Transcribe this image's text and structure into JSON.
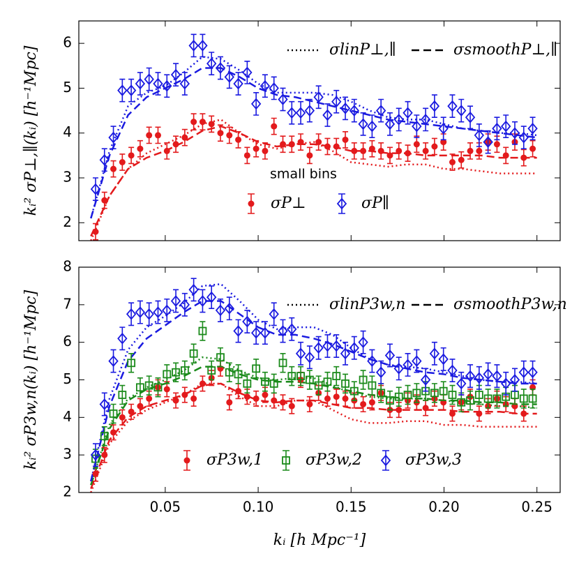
{
  "chart_data": [
    {
      "type": "scatter",
      "ylabel": "kᵢ² σP⊥,∥(kᵢ)  [h⁻¹Mpc]",
      "annotation": "small bins",
      "xlim": [
        0.0035,
        0.2625
      ],
      "ylim": [
        1.6,
        6.5
      ],
      "yticks": [
        2,
        3,
        4,
        5,
        6
      ],
      "x": [
        0.0125,
        0.0173,
        0.0221,
        0.0269,
        0.0317,
        0.0365,
        0.0413,
        0.0461,
        0.0509,
        0.0557,
        0.0605,
        0.0653,
        0.0701,
        0.0749,
        0.0797,
        0.0845,
        0.0893,
        0.0941,
        0.0989,
        0.1037,
        0.1085,
        0.1133,
        0.1181,
        0.1229,
        0.1277,
        0.1325,
        0.1373,
        0.1421,
        0.1469,
        0.1517,
        0.1565,
        0.1613,
        0.1661,
        0.1709,
        0.1757,
        0.1805,
        0.1853,
        0.1901,
        0.1949,
        0.1997,
        0.2045,
        0.2093,
        0.2141,
        0.2189,
        0.2237,
        0.2285,
        0.2333,
        0.2381,
        0.2429,
        0.2477
      ],
      "series": [
        {
          "name": "σP⊥",
          "color": "#e31a1c",
          "marker": "circle",
          "error": 0.18,
          "values": [
            1.8,
            2.5,
            3.2,
            3.35,
            3.5,
            3.65,
            3.95,
            3.95,
            3.6,
            3.75,
            3.9,
            4.25,
            4.25,
            4.2,
            4.0,
            3.95,
            3.85,
            3.5,
            3.65,
            3.6,
            4.15,
            3.75,
            3.75,
            3.8,
            3.5,
            3.8,
            3.7,
            3.7,
            3.85,
            3.6,
            3.6,
            3.65,
            3.6,
            3.5,
            3.6,
            3.55,
            3.75,
            3.6,
            3.7,
            3.8,
            3.35,
            3.4,
            3.6,
            3.6,
            3.8,
            3.75,
            3.5,
            3.8,
            3.45,
            3.65
          ]
        },
        {
          "name": "σP∥",
          "color": "#1a1ae0",
          "marker": "diamond",
          "error": 0.25,
          "values": [
            2.75,
            3.4,
            3.9,
            4.95,
            4.95,
            5.1,
            5.2,
            5.1,
            5.05,
            5.3,
            5.1,
            5.95,
            5.95,
            5.55,
            5.45,
            5.25,
            5.1,
            5.35,
            4.65,
            5.05,
            5.0,
            4.75,
            4.45,
            4.45,
            4.5,
            4.8,
            4.4,
            4.7,
            4.55,
            4.5,
            4.2,
            4.15,
            4.5,
            4.2,
            4.3,
            4.45,
            4.15,
            4.3,
            4.6,
            4.1,
            4.6,
            4.5,
            4.35,
            3.95,
            3.8,
            4.1,
            4.15,
            4.0,
            3.9,
            4.1
          ]
        }
      ],
      "legend_lines": [
        {
          "name": "σlinP⊥,∥",
          "linestyle": "dotted"
        },
        {
          "name": "σsmoothP⊥,∥",
          "linestyle": "dashed"
        }
      ],
      "curve_x": [
        0.01,
        0.02,
        0.03,
        0.04,
        0.05,
        0.06,
        0.07,
        0.08,
        0.09,
        0.1,
        0.11,
        0.12,
        0.13,
        0.14,
        0.15,
        0.16,
        0.17,
        0.18,
        0.19,
        0.2,
        0.21,
        0.22,
        0.23,
        0.24,
        0.25
      ],
      "curves": [
        {
          "color": "#e31a1c",
          "linestyle": "dotted",
          "values": [
            1.6,
            2.6,
            3.2,
            3.55,
            3.75,
            3.95,
            4.2,
            4.3,
            4.0,
            3.75,
            3.65,
            3.75,
            3.8,
            3.6,
            3.35,
            3.3,
            3.25,
            3.3,
            3.3,
            3.2,
            3.2,
            3.15,
            3.1,
            3.1,
            3.1
          ]
        },
        {
          "color": "#e31a1c",
          "linestyle": "dashed",
          "values": [
            1.7,
            2.6,
            3.2,
            3.45,
            3.6,
            3.8,
            4.05,
            4.15,
            4.0,
            3.8,
            3.7,
            3.75,
            3.75,
            3.7,
            3.6,
            3.6,
            3.55,
            3.55,
            3.5,
            3.5,
            3.5,
            3.5,
            3.45,
            3.45,
            3.45
          ]
        },
        {
          "color": "#1a1ae0",
          "linestyle": "dotted",
          "values": [
            2.1,
            3.6,
            4.6,
            4.9,
            5.05,
            5.35,
            5.7,
            5.65,
            5.4,
            5.1,
            4.9,
            4.9,
            4.9,
            4.85,
            4.7,
            4.5,
            4.35,
            4.3,
            4.3,
            4.2,
            4.1,
            4.05,
            4.0,
            4.0,
            3.95
          ]
        },
        {
          "color": "#1a1ae0",
          "linestyle": "dashed",
          "values": [
            2.1,
            3.5,
            4.4,
            4.8,
            5.0,
            5.2,
            5.45,
            5.45,
            5.25,
            5.0,
            4.85,
            4.8,
            4.7,
            4.6,
            4.5,
            4.4,
            4.3,
            4.25,
            4.2,
            4.15,
            4.1,
            4.05,
            4.0,
            3.95,
            3.9
          ]
        }
      ]
    },
    {
      "type": "scatter",
      "ylabel": "kᵢ² σP3w,n(kᵢ)  [h⁻¹Mpc]",
      "xlabel": "kᵢ  [h Mpc⁻¹]",
      "xlim": [
        0.0035,
        0.2625
      ],
      "ylim": [
        2,
        8
      ],
      "xticks": [
        0.05,
        {
          "value": 0.1,
          "label": "0.10"
        },
        0.15,
        {
          "value": 0.2,
          "label": "0.20"
        },
        0.25
      ],
      "yticks": [
        2,
        3,
        4,
        5,
        6,
        7,
        8
      ],
      "x": [
        0.0125,
        0.0173,
        0.0221,
        0.0269,
        0.0317,
        0.0365,
        0.0413,
        0.0461,
        0.0509,
        0.0557,
        0.0605,
        0.0653,
        0.0701,
        0.0749,
        0.0797,
        0.0845,
        0.0893,
        0.0941,
        0.0989,
        0.1037,
        0.1085,
        0.1133,
        0.1181,
        0.1229,
        0.1277,
        0.1325,
        0.1373,
        0.1421,
        0.1469,
        0.1517,
        0.1565,
        0.1613,
        0.1661,
        0.1709,
        0.1757,
        0.1805,
        0.1853,
        0.1901,
        0.1949,
        0.1997,
        0.2045,
        0.2093,
        0.2141,
        0.2189,
        0.2237,
        0.2285,
        0.2333,
        0.2381,
        0.2429,
        0.2477
      ],
      "series": [
        {
          "name": "σP3w,1",
          "color": "#e31a1c",
          "marker": "circle",
          "error": 0.2,
          "values": [
            2.5,
            3.0,
            3.6,
            4.0,
            4.15,
            4.3,
            4.5,
            4.8,
            4.75,
            4.45,
            4.6,
            4.5,
            4.9,
            5.05,
            5.3,
            4.4,
            4.7,
            4.55,
            4.5,
            4.6,
            4.45,
            4.4,
            4.3,
            5.0,
            4.35,
            4.65,
            4.5,
            4.55,
            4.5,
            4.45,
            4.35,
            4.4,
            4.65,
            4.2,
            4.2,
            4.45,
            4.4,
            4.25,
            4.5,
            4.4,
            4.1,
            4.4,
            4.55,
            4.1,
            4.3,
            4.5,
            4.35,
            4.3,
            4.1,
            4.8
          ]
        },
        {
          "name": "σP3w,2",
          "color": "#1a8a1a",
          "marker": "square",
          "error": 0.25,
          "values": [
            2.9,
            3.5,
            4.1,
            4.6,
            5.45,
            4.8,
            4.85,
            4.8,
            5.15,
            5.2,
            5.25,
            5.7,
            6.3,
            5.25,
            5.6,
            5.2,
            5.15,
            4.9,
            5.3,
            4.95,
            4.9,
            5.45,
            5.1,
            5.1,
            5.0,
            4.85,
            4.95,
            5.1,
            4.9,
            4.7,
            5.0,
            4.85,
            4.65,
            4.45,
            4.55,
            4.6,
            4.65,
            4.7,
            4.65,
            4.7,
            4.6,
            4.4,
            4.45,
            4.6,
            4.5,
            4.5,
            4.55,
            4.6,
            4.5,
            4.5
          ]
        },
        {
          "name": "σP3w,3",
          "color": "#1a1ae0",
          "marker": "diamond",
          "error": 0.3,
          "values": [
            3.0,
            4.35,
            5.5,
            6.1,
            6.75,
            6.8,
            6.75,
            6.8,
            6.85,
            7.1,
            7.0,
            7.4,
            7.1,
            7.2,
            6.85,
            6.9,
            6.3,
            6.55,
            6.25,
            6.25,
            6.75,
            6.3,
            6.35,
            5.7,
            5.6,
            5.85,
            5.9,
            5.9,
            5.7,
            5.85,
            6.0,
            5.5,
            5.2,
            5.65,
            5.3,
            5.4,
            5.5,
            5.0,
            5.7,
            5.55,
            5.25,
            4.9,
            5.1,
            5.05,
            5.15,
            5.1,
            4.9,
            5.0,
            5.2,
            5.2
          ]
        }
      ],
      "legend_lines": [
        {
          "name": "σlinP3w,n",
          "linestyle": "dotted"
        },
        {
          "name": "σsmoothP3w,n",
          "linestyle": "dashed"
        }
      ],
      "curve_x": [
        0.01,
        0.02,
        0.03,
        0.04,
        0.05,
        0.06,
        0.07,
        0.08,
        0.09,
        0.1,
        0.11,
        0.12,
        0.13,
        0.14,
        0.15,
        0.16,
        0.17,
        0.18,
        0.19,
        0.2,
        0.21,
        0.22,
        0.23,
        0.24,
        0.25
      ],
      "curves": [
        {
          "color": "#e31a1c",
          "linestyle": "dotted",
          "values": [
            2.0,
            3.3,
            3.9,
            4.2,
            4.4,
            4.6,
            4.9,
            4.9,
            4.55,
            4.3,
            4.3,
            4.45,
            4.45,
            4.2,
            3.95,
            3.85,
            3.85,
            3.9,
            3.9,
            3.8,
            3.8,
            3.75,
            3.75,
            3.75,
            3.75
          ]
        },
        {
          "color": "#e31a1c",
          "linestyle": "dashed",
          "values": [
            2.1,
            3.4,
            4.0,
            4.3,
            4.45,
            4.6,
            4.85,
            4.9,
            4.65,
            4.45,
            4.4,
            4.45,
            4.45,
            4.35,
            4.25,
            4.25,
            4.2,
            4.2,
            4.2,
            4.2,
            4.15,
            4.15,
            4.15,
            4.1,
            4.1
          ]
        },
        {
          "color": "#1a8a1a",
          "linestyle": "dotted",
          "values": [
            2.2,
            3.8,
            4.5,
            4.8,
            5.0,
            5.25,
            5.6,
            5.55,
            5.25,
            5.05,
            5.0,
            5.05,
            5.05,
            4.85,
            4.65,
            4.55,
            4.5,
            4.5,
            4.5,
            4.45,
            4.4,
            4.35,
            4.3,
            4.3,
            4.25
          ]
        },
        {
          "color": "#1a8a1a",
          "linestyle": "dashed",
          "values": [
            2.2,
            3.7,
            4.45,
            4.75,
            4.9,
            5.1,
            5.35,
            5.35,
            5.15,
            5.0,
            4.95,
            4.95,
            4.9,
            4.8,
            4.7,
            4.6,
            4.55,
            4.5,
            4.5,
            4.45,
            4.45,
            4.4,
            4.4,
            4.35,
            4.35
          ]
        },
        {
          "color": "#1a1ae0",
          "linestyle": "dotted",
          "values": [
            2.3,
            4.5,
            5.8,
            6.4,
            6.7,
            7.05,
            7.5,
            7.55,
            7.1,
            6.6,
            6.35,
            6.4,
            6.4,
            6.2,
            5.85,
            5.55,
            5.4,
            5.35,
            5.3,
            5.2,
            5.1,
            5.0,
            4.95,
            4.95,
            4.9
          ]
        },
        {
          "color": "#1a1ae0",
          "linestyle": "dashed",
          "values": [
            2.3,
            4.3,
            5.5,
            6.1,
            6.45,
            6.8,
            7.1,
            7.1,
            6.75,
            6.4,
            6.2,
            6.2,
            6.1,
            5.95,
            5.75,
            5.55,
            5.4,
            5.3,
            5.2,
            5.15,
            5.05,
            5.0,
            4.95,
            4.9,
            4.9
          ]
        }
      ]
    }
  ]
}
